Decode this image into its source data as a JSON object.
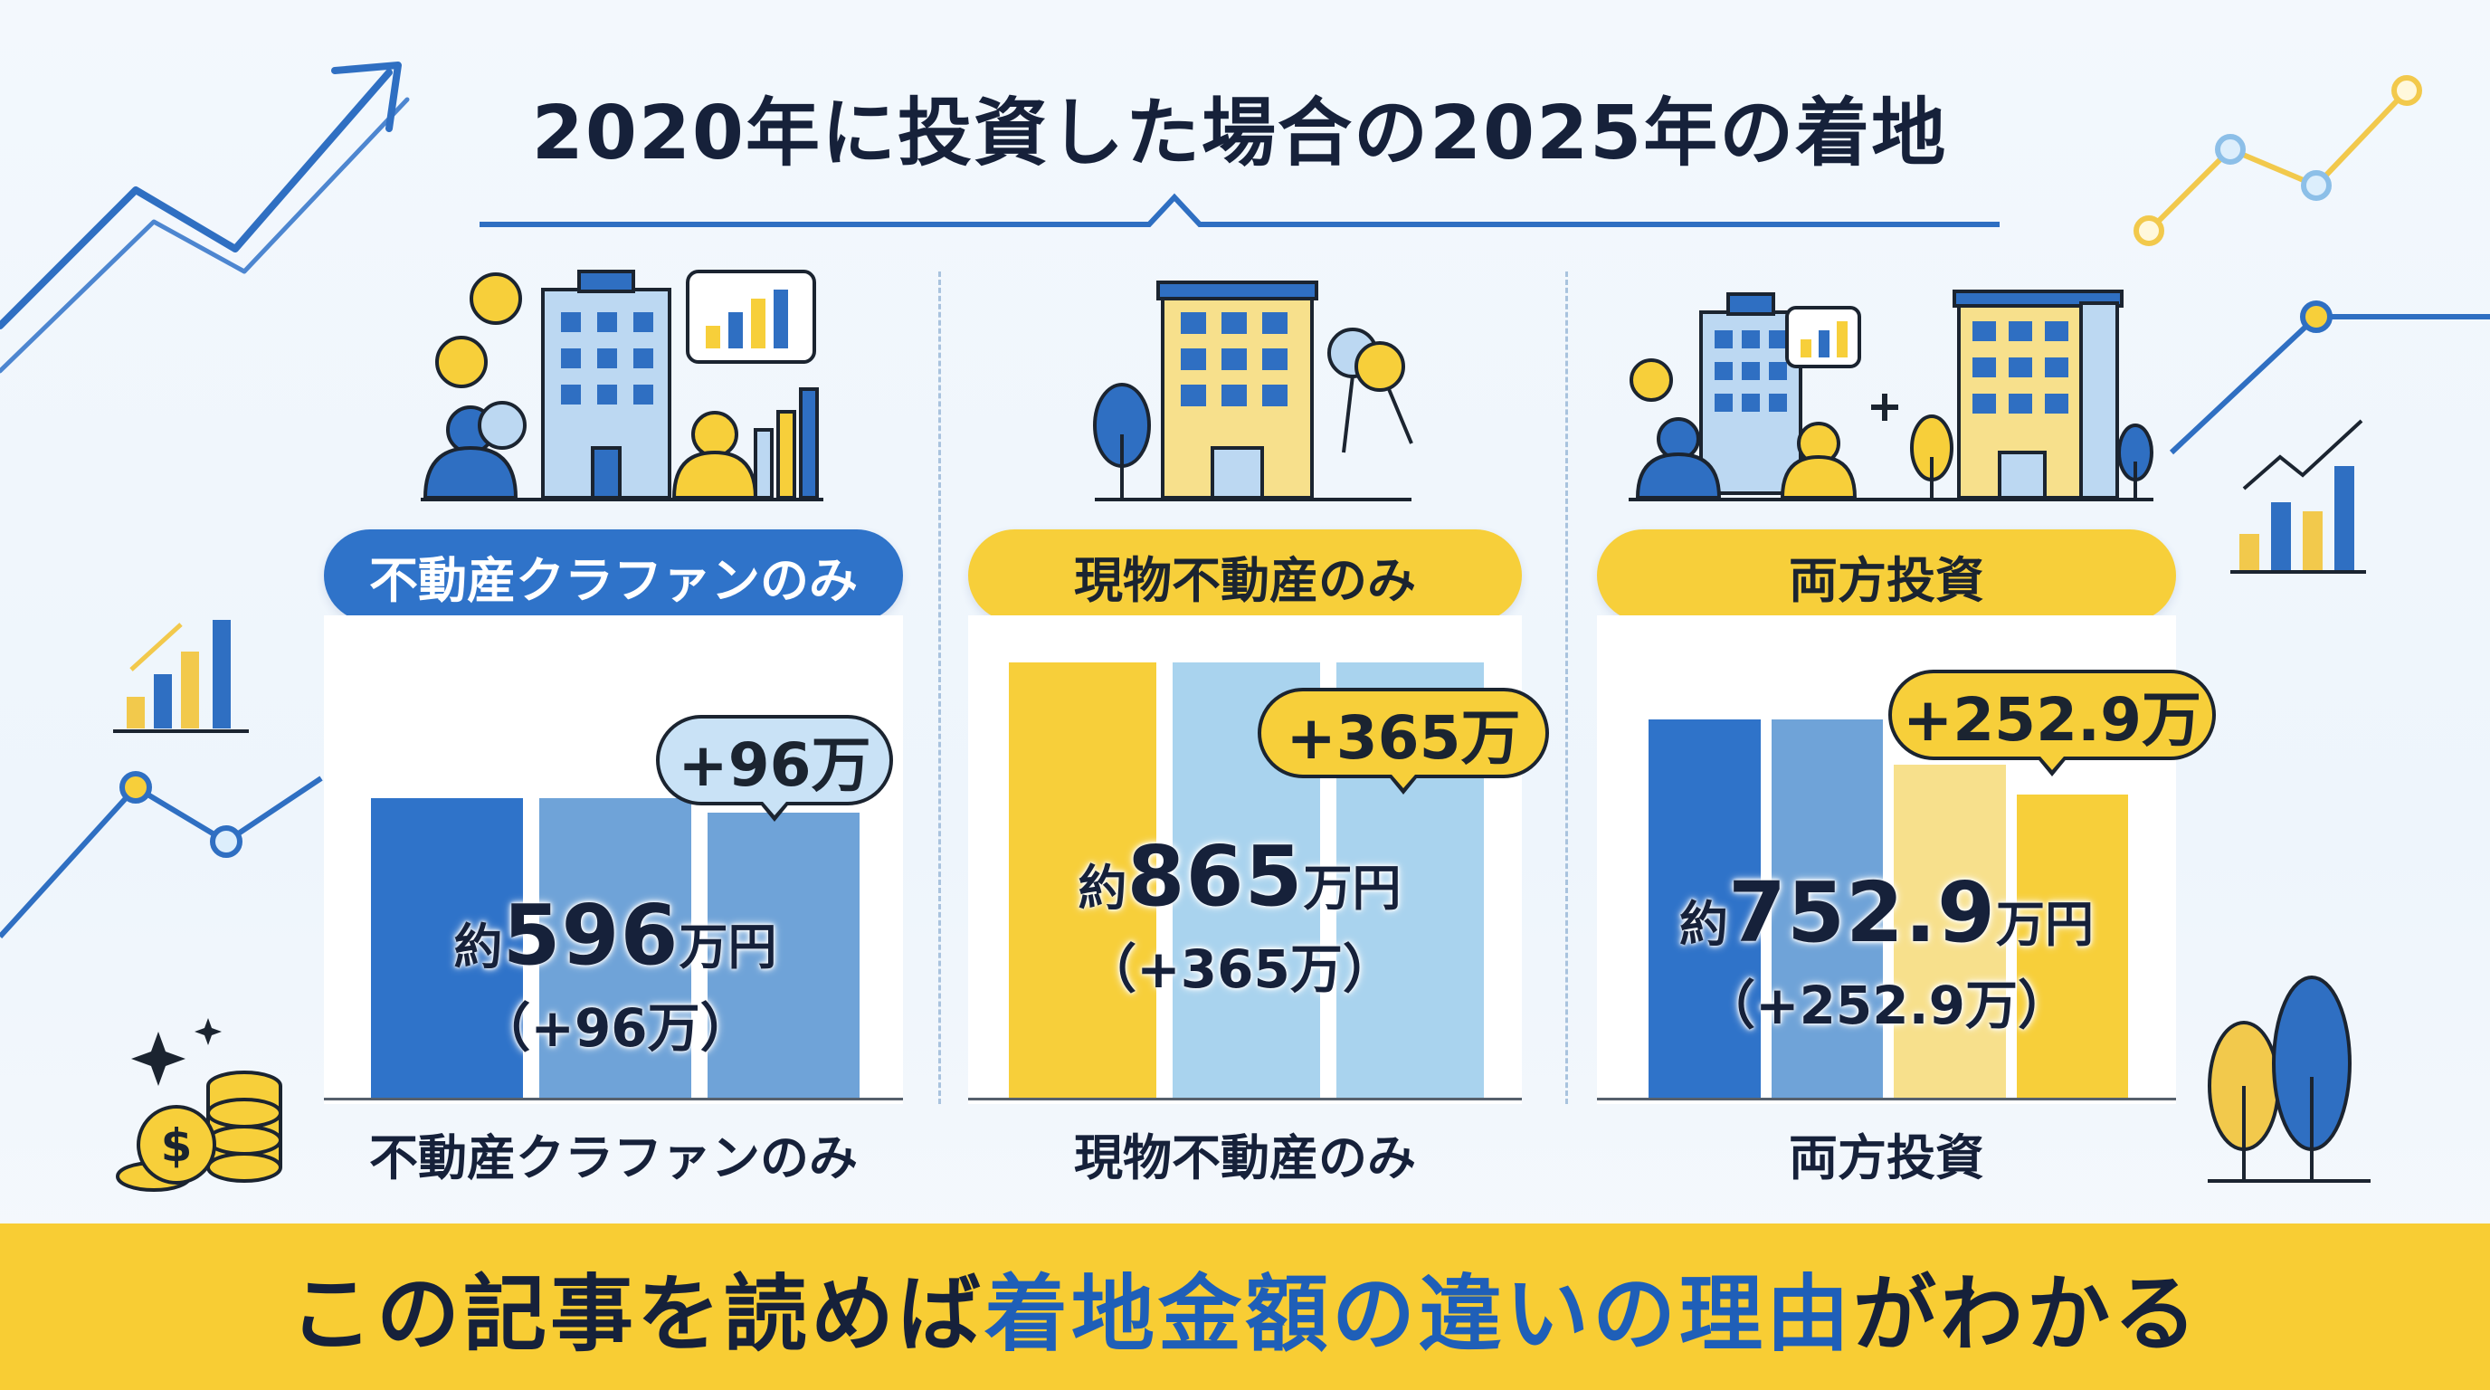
{
  "header": {
    "title": "2020年に投資した場合の2025年の着地"
  },
  "colors": {
    "blue_dark": "#2f73c9",
    "blue_mid": "#6fa3d8",
    "blue_light": "#a9d3ee",
    "yellow": "#f7cf3a",
    "yellow_light": "#f7e08c",
    "navy": "#16213a"
  },
  "scenarios": [
    {
      "pill_label": "不動産クラファンのみ",
      "category_label": "不動産クラファンのみ",
      "bubble": "+96万",
      "value_prefix": "約",
      "value_number": "596",
      "value_unit": "万円",
      "value_delta": "（+96万）",
      "icon": "office-building-people-chart-icon"
    },
    {
      "pill_label": "現物不動産のみ",
      "category_label": "現物不動産のみ",
      "bubble": "+365万",
      "value_prefix": "約",
      "value_number": "865",
      "value_unit": "万円",
      "value_delta": "（+365万）",
      "icon": "apartment-key-icon"
    },
    {
      "pill_label": "両方投資",
      "category_label": "両方投資",
      "bubble": "+252.9万",
      "value_prefix": "約",
      "value_number": "752.9",
      "value_unit": "万円",
      "value_delta": "（+252.9万）",
      "icon": "office-plus-apartment-icon"
    }
  ],
  "chart_data": {
    "type": "bar",
    "categories": [
      "不動産クラファンのみ",
      "現物不動産のみ",
      "両方投資"
    ],
    "values": [
      596,
      865,
      752.9
    ],
    "gains": [
      96,
      365,
      252.9
    ],
    "unit": "万円"
  },
  "footer": {
    "text_before": "この記事を読めば",
    "text_highlight": "着地金額の違いの理由",
    "text_after": "がわかる"
  }
}
